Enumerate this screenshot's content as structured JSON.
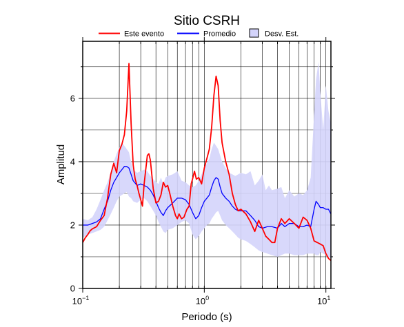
{
  "chart_data": {
    "type": "line",
    "title": "Sitio CSRH",
    "xlabel": "Periodo (s)",
    "ylabel": "Amplitud",
    "x_scale": "log",
    "xlim": [
      0.1,
      11
    ],
    "ylim": [
      0,
      7.8
    ],
    "grid": true,
    "legend_position": "top",
    "x_tick_labels": [
      {
        "value": 0.1,
        "base": "10",
        "exp": "−1"
      },
      {
        "value": 1,
        "base": "10",
        "exp": "0"
      },
      {
        "value": 10,
        "base": "10",
        "exp": "1"
      }
    ],
    "y_ticks": [
      0,
      2,
      4,
      6
    ],
    "y_tick_labels": [
      "0",
      "2",
      "4",
      "6"
    ],
    "series": [
      {
        "name": "Este evento",
        "color": "#ff0000",
        "points": [
          [
            0.1,
            1.45
          ],
          [
            0.105,
            1.6
          ],
          [
            0.11,
            1.7
          ],
          [
            0.115,
            1.82
          ],
          [
            0.12,
            1.88
          ],
          [
            0.13,
            1.95
          ],
          [
            0.14,
            2.15
          ],
          [
            0.15,
            2.3
          ],
          [
            0.16,
            2.85
          ],
          [
            0.17,
            3.6
          ],
          [
            0.18,
            3.95
          ],
          [
            0.19,
            3.65
          ],
          [
            0.2,
            4.35
          ],
          [
            0.21,
            4.55
          ],
          [
            0.22,
            4.85
          ],
          [
            0.23,
            5.6
          ],
          [
            0.24,
            7.1
          ],
          [
            0.25,
            5.2
          ],
          [
            0.26,
            3.9
          ],
          [
            0.27,
            3.45
          ],
          [
            0.28,
            3.25
          ],
          [
            0.29,
            3.0
          ],
          [
            0.3,
            2.8
          ],
          [
            0.31,
            2.6
          ],
          [
            0.32,
            3.3
          ],
          [
            0.34,
            4.2
          ],
          [
            0.35,
            4.25
          ],
          [
            0.36,
            4.05
          ],
          [
            0.38,
            3.15
          ],
          [
            0.4,
            2.7
          ],
          [
            0.42,
            2.75
          ],
          [
            0.44,
            2.95
          ],
          [
            0.46,
            3.35
          ],
          [
            0.48,
            3.2
          ],
          [
            0.5,
            3.25
          ],
          [
            0.52,
            3.0
          ],
          [
            0.55,
            2.6
          ],
          [
            0.58,
            2.3
          ],
          [
            0.6,
            2.2
          ],
          [
            0.62,
            2.35
          ],
          [
            0.65,
            2.2
          ],
          [
            0.68,
            2.25
          ],
          [
            0.72,
            2.5
          ],
          [
            0.75,
            2.6
          ],
          [
            0.78,
            3.3
          ],
          [
            0.8,
            3.45
          ],
          [
            0.83,
            3.7
          ],
          [
            0.86,
            3.45
          ],
          [
            0.9,
            3.5
          ],
          [
            0.95,
            3.3
          ],
          [
            1.0,
            3.8
          ],
          [
            1.05,
            4.1
          ],
          [
            1.1,
            4.4
          ],
          [
            1.15,
            5.1
          ],
          [
            1.2,
            6.1
          ],
          [
            1.25,
            6.7
          ],
          [
            1.3,
            6.4
          ],
          [
            1.35,
            5.3
          ],
          [
            1.4,
            4.6
          ],
          [
            1.5,
            4.0
          ],
          [
            1.6,
            3.6
          ],
          [
            1.7,
            3.0
          ],
          [
            1.8,
            2.65
          ],
          [
            1.9,
            2.45
          ],
          [
            2.0,
            2.5
          ],
          [
            2.2,
            2.35
          ],
          [
            2.4,
            2.1
          ],
          [
            2.6,
            1.8
          ],
          [
            2.8,
            2.15
          ],
          [
            3.0,
            1.9
          ],
          [
            3.2,
            1.65
          ],
          [
            3.4,
            1.55
          ],
          [
            3.6,
            1.45
          ],
          [
            3.8,
            1.45
          ],
          [
            4.0,
            1.9
          ],
          [
            4.3,
            2.2
          ],
          [
            4.6,
            2.05
          ],
          [
            5.0,
            2.2
          ],
          [
            5.5,
            2.05
          ],
          [
            6.0,
            1.9
          ],
          [
            6.5,
            2.25
          ],
          [
            7.0,
            2.15
          ],
          [
            7.5,
            1.9
          ],
          [
            8.0,
            1.5
          ],
          [
            8.5,
            1.45
          ],
          [
            9.0,
            1.4
          ],
          [
            9.5,
            1.35
          ],
          [
            10.0,
            1.1
          ],
          [
            10.5,
            0.95
          ],
          [
            11.0,
            0.88
          ]
        ]
      },
      {
        "name": "Promedio",
        "color": "#0000ff",
        "points": [
          [
            0.1,
            2.0
          ],
          [
            0.11,
            2.0
          ],
          [
            0.12,
            2.05
          ],
          [
            0.13,
            2.1
          ],
          [
            0.14,
            2.2
          ],
          [
            0.15,
            2.5
          ],
          [
            0.16,
            2.75
          ],
          [
            0.17,
            3.1
          ],
          [
            0.18,
            3.35
          ],
          [
            0.19,
            3.5
          ],
          [
            0.2,
            3.65
          ],
          [
            0.21,
            3.75
          ],
          [
            0.22,
            3.85
          ],
          [
            0.23,
            3.85
          ],
          [
            0.24,
            3.8
          ],
          [
            0.25,
            3.6
          ],
          [
            0.26,
            3.4
          ],
          [
            0.28,
            3.25
          ],
          [
            0.3,
            3.3
          ],
          [
            0.32,
            3.25
          ],
          [
            0.34,
            3.2
          ],
          [
            0.36,
            3.1
          ],
          [
            0.38,
            2.95
          ],
          [
            0.4,
            2.75
          ],
          [
            0.42,
            2.55
          ],
          [
            0.44,
            2.4
          ],
          [
            0.46,
            2.3
          ],
          [
            0.48,
            2.45
          ],
          [
            0.5,
            2.55
          ],
          [
            0.55,
            2.7
          ],
          [
            0.6,
            2.85
          ],
          [
            0.65,
            2.85
          ],
          [
            0.7,
            2.8
          ],
          [
            0.75,
            2.65
          ],
          [
            0.8,
            2.4
          ],
          [
            0.85,
            2.2
          ],
          [
            0.9,
            2.3
          ],
          [
            0.95,
            2.55
          ],
          [
            1.0,
            2.75
          ],
          [
            1.05,
            2.85
          ],
          [
            1.1,
            2.95
          ],
          [
            1.15,
            3.2
          ],
          [
            1.2,
            3.4
          ],
          [
            1.25,
            3.5
          ],
          [
            1.3,
            3.45
          ],
          [
            1.35,
            3.2
          ],
          [
            1.4,
            3.0
          ],
          [
            1.5,
            2.85
          ],
          [
            1.6,
            2.75
          ],
          [
            1.7,
            2.6
          ],
          [
            1.8,
            2.5
          ],
          [
            1.9,
            2.45
          ],
          [
            2.0,
            2.45
          ],
          [
            2.2,
            2.45
          ],
          [
            2.4,
            2.3
          ],
          [
            2.6,
            2.15
          ],
          [
            2.8,
            1.95
          ],
          [
            3.0,
            1.9
          ],
          [
            3.3,
            1.95
          ],
          [
            3.6,
            1.95
          ],
          [
            4.0,
            1.9
          ],
          [
            4.3,
            2.05
          ],
          [
            4.6,
            1.95
          ],
          [
            5.0,
            2.05
          ],
          [
            5.5,
            2.05
          ],
          [
            6.0,
            1.95
          ],
          [
            6.5,
            1.95
          ],
          [
            7.0,
            2.0
          ],
          [
            7.5,
            1.95
          ],
          [
            8.0,
            2.5
          ],
          [
            8.3,
            2.75
          ],
          [
            8.7,
            2.65
          ],
          [
            9.0,
            2.55
          ],
          [
            9.5,
            2.55
          ],
          [
            10.0,
            2.5
          ],
          [
            10.5,
            2.5
          ],
          [
            11.0,
            2.35
          ]
        ]
      }
    ],
    "std_band": {
      "name": "Desv. Est.",
      "color": "#d4d4fb",
      "upper": [
        [
          0.1,
          2.2
        ],
        [
          0.11,
          2.15
        ],
        [
          0.12,
          2.25
        ],
        [
          0.13,
          2.5
        ],
        [
          0.14,
          2.8
        ],
        [
          0.15,
          3.1
        ],
        [
          0.16,
          3.35
        ],
        [
          0.17,
          3.65
        ],
        [
          0.18,
          4.0
        ],
        [
          0.19,
          4.25
        ],
        [
          0.2,
          4.45
        ],
        [
          0.21,
          4.6
        ],
        [
          0.22,
          4.5
        ],
        [
          0.23,
          4.4
        ],
        [
          0.24,
          4.3
        ],
        [
          0.25,
          4.0
        ],
        [
          0.26,
          3.75
        ],
        [
          0.28,
          3.65
        ],
        [
          0.3,
          3.7
        ],
        [
          0.32,
          3.75
        ],
        [
          0.34,
          3.7
        ],
        [
          0.36,
          3.55
        ],
        [
          0.38,
          3.45
        ],
        [
          0.4,
          3.35
        ],
        [
          0.42,
          3.3
        ],
        [
          0.44,
          3.5
        ],
        [
          0.46,
          3.3
        ],
        [
          0.48,
          3.5
        ],
        [
          0.5,
          3.55
        ],
        [
          0.55,
          3.6
        ],
        [
          0.6,
          3.7
        ],
        [
          0.65,
          3.4
        ],
        [
          0.7,
          3.35
        ],
        [
          0.75,
          3.25
        ],
        [
          0.8,
          3.2
        ],
        [
          0.85,
          3.25
        ],
        [
          0.9,
          3.4
        ],
        [
          0.95,
          3.6
        ],
        [
          1.0,
          3.8
        ],
        [
          1.05,
          3.95
        ],
        [
          1.1,
          4.1
        ],
        [
          1.15,
          4.4
        ],
        [
          1.2,
          4.6
        ],
        [
          1.25,
          4.5
        ],
        [
          1.3,
          4.4
        ],
        [
          1.35,
          4.2
        ],
        [
          1.4,
          4.0
        ],
        [
          1.5,
          3.8
        ],
        [
          1.6,
          3.65
        ],
        [
          1.7,
          3.6
        ],
        [
          1.8,
          3.55
        ],
        [
          1.9,
          3.6
        ],
        [
          2.0,
          3.65
        ],
        [
          2.2,
          3.6
        ],
        [
          2.4,
          3.7
        ],
        [
          2.6,
          3.25
        ],
        [
          2.8,
          3.4
        ],
        [
          3.0,
          3.6
        ],
        [
          3.2,
          3.1
        ],
        [
          3.4,
          3.25
        ],
        [
          3.6,
          3.1
        ],
        [
          4.0,
          3.15
        ],
        [
          4.3,
          3.2
        ],
        [
          4.6,
          2.85
        ],
        [
          5.0,
          3.1
        ],
        [
          5.5,
          2.9
        ],
        [
          6.0,
          3.0
        ],
        [
          6.5,
          2.95
        ],
        [
          7.0,
          3.1
        ],
        [
          7.5,
          3.5
        ],
        [
          8.0,
          5.5
        ],
        [
          8.3,
          6.6
        ],
        [
          8.7,
          7.15
        ],
        [
          9.0,
          6.2
        ],
        [
          9.5,
          5.0
        ],
        [
          10.0,
          6.4
        ],
        [
          10.5,
          5.6
        ],
        [
          11.0,
          5.2
        ]
      ],
      "lower": [
        [
          0.1,
          1.6
        ],
        [
          0.11,
          1.7
        ],
        [
          0.12,
          1.75
        ],
        [
          0.13,
          1.8
        ],
        [
          0.14,
          1.85
        ],
        [
          0.15,
          1.95
        ],
        [
          0.16,
          2.15
        ],
        [
          0.17,
          2.35
        ],
        [
          0.18,
          2.55
        ],
        [
          0.19,
          2.75
        ],
        [
          0.2,
          2.9
        ],
        [
          0.21,
          2.95
        ],
        [
          0.22,
          3.0
        ],
        [
          0.23,
          3.05
        ],
        [
          0.24,
          2.9
        ],
        [
          0.25,
          2.85
        ],
        [
          0.26,
          2.75
        ],
        [
          0.28,
          2.7
        ],
        [
          0.3,
          2.8
        ],
        [
          0.32,
          2.85
        ],
        [
          0.34,
          2.75
        ],
        [
          0.36,
          2.6
        ],
        [
          0.38,
          2.45
        ],
        [
          0.4,
          2.3
        ],
        [
          0.42,
          2.1
        ],
        [
          0.44,
          1.95
        ],
        [
          0.46,
          1.8
        ],
        [
          0.48,
          1.75
        ],
        [
          0.5,
          1.85
        ],
        [
          0.55,
          1.9
        ],
        [
          0.6,
          2.0
        ],
        [
          0.65,
          2.1
        ],
        [
          0.7,
          2.15
        ],
        [
          0.75,
          2.05
        ],
        [
          0.8,
          1.7
        ],
        [
          0.85,
          1.55
        ],
        [
          0.9,
          1.65
        ],
        [
          0.95,
          1.8
        ],
        [
          1.0,
          1.9
        ],
        [
          1.05,
          2.0
        ],
        [
          1.1,
          2.05
        ],
        [
          1.15,
          2.2
        ],
        [
          1.2,
          2.3
        ],
        [
          1.25,
          2.4
        ],
        [
          1.3,
          2.45
        ],
        [
          1.35,
          2.3
        ],
        [
          1.4,
          2.15
        ],
        [
          1.5,
          2.0
        ],
        [
          1.6,
          1.9
        ],
        [
          1.7,
          1.8
        ],
        [
          1.8,
          1.7
        ],
        [
          1.9,
          1.6
        ],
        [
          2.0,
          1.55
        ],
        [
          2.2,
          1.5
        ],
        [
          2.4,
          1.4
        ],
        [
          2.6,
          1.3
        ],
        [
          2.8,
          1.2
        ],
        [
          3.0,
          1.15
        ],
        [
          3.3,
          1.1
        ],
        [
          3.6,
          1.05
        ],
        [
          4.0,
          1.0
        ],
        [
          4.3,
          1.05
        ],
        [
          4.6,
          1.1
        ],
        [
          5.0,
          1.1
        ],
        [
          5.5,
          1.05
        ],
        [
          6.0,
          1.05
        ],
        [
          6.5,
          1.05
        ],
        [
          7.0,
          1.1
        ],
        [
          7.5,
          1.1
        ],
        [
          8.0,
          1.1
        ],
        [
          8.3,
          1.05
        ],
        [
          8.7,
          1.05
        ],
        [
          9.0,
          1.15
        ],
        [
          9.5,
          1.1
        ],
        [
          10.0,
          1.05
        ],
        [
          10.5,
          1.0
        ],
        [
          11.0,
          0.95
        ]
      ]
    }
  }
}
